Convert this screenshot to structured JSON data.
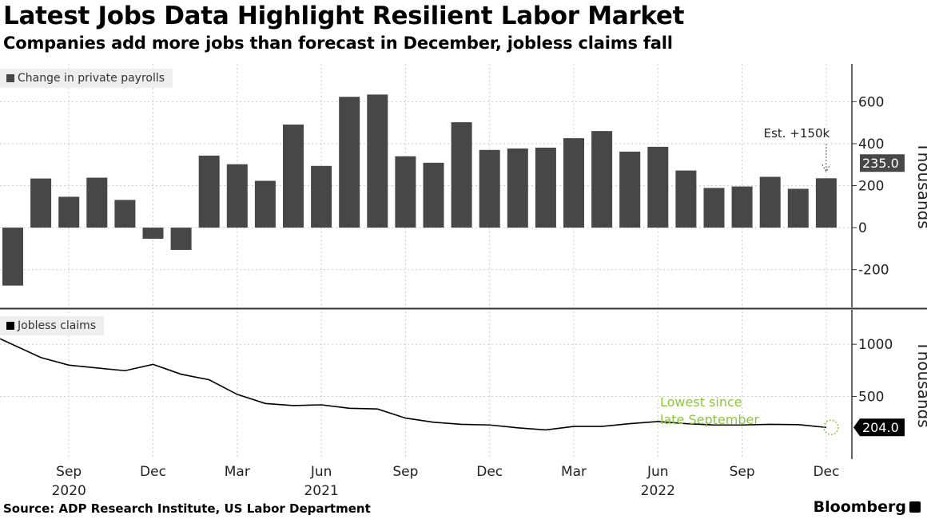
{
  "header": {
    "title": "Latest Jobs Data Highlight Resilient Labor Market",
    "subtitle": "Companies add more jobs than forecast in December, jobless claims fall"
  },
  "footer": {
    "source": "Source: ADP Research Institute, US Labor Department",
    "logo": "Bloomberg"
  },
  "colors": {
    "bar": "#474747",
    "line": "#000000",
    "annotation_green": "#8cc63f",
    "callout_top": "#474747",
    "callout_bottom": "#000000"
  },
  "chart_data": [
    {
      "type": "bar",
      "legend": "Change in private payrolls",
      "ylabel": "Thousands",
      "ylim": [
        -380,
        780
      ],
      "yticks": [
        -200,
        0,
        200,
        400,
        600
      ],
      "ytick_labels": [
        "-200",
        "0",
        "200",
        "400",
        "600"
      ],
      "grid": true,
      "legend_position": "top-left",
      "categories": [
        "Jul 2020",
        "Aug 2020",
        "Sep 2020",
        "Oct 2020",
        "Nov 2020",
        "Dec 2020",
        "Jan 2021",
        "Feb 2021",
        "Mar 2021",
        "Apr 2021",
        "May 2021",
        "Jun 2021",
        "Jul 2021",
        "Aug 2021",
        "Sep 2021",
        "Oct 2021",
        "Nov 2021",
        "Dec 2021",
        "Jan 2022",
        "Feb 2022",
        "Mar 2022",
        "Apr 2022",
        "May 2022",
        "Jun 2022",
        "Jul 2022",
        "Aug 2022",
        "Sep 2022",
        "Oct 2022",
        "Nov 2022",
        "Dec 2022"
      ],
      "values": [
        -276,
        234,
        147,
        238,
        132,
        -53,
        -106,
        343,
        302,
        223,
        491,
        294,
        623,
        634,
        340,
        309,
        502,
        370,
        377,
        381,
        426,
        460,
        362,
        385,
        272,
        189,
        196,
        242,
        185,
        235
      ],
      "last_value_label": "235.0",
      "annotation": "Est. +150k"
    },
    {
      "type": "line",
      "legend": "Jobless claims",
      "ylabel": "Thousands",
      "ylim": [
        -100,
        1330
      ],
      "yticks": [
        500,
        1000
      ],
      "ytick_labels": [
        "500",
        "1000"
      ],
      "grid": true,
      "legend_position": "top-left",
      "categories": [
        "Jul 2020",
        "Aug 2020",
        "Sep 2020",
        "Oct 2020",
        "Nov 2020",
        "Dec 2020",
        "Jan 2021",
        "Feb 2021",
        "Mar 2021",
        "Apr 2021",
        "May 2021",
        "Jun 2021",
        "Jul 2021",
        "Aug 2021",
        "Sep 2021",
        "Oct 2021",
        "Nov 2021",
        "Dec 2021",
        "Jan 2022",
        "Feb 2022",
        "Mar 2022",
        "Apr 2022",
        "May 2022",
        "Jun 2022",
        "Jul 2022",
        "Aug 2022",
        "Sep 2022",
        "Oct 2022",
        "Nov 2022",
        "Dec 2022"
      ],
      "values": [
        1053,
        873,
        800,
        773,
        747,
        807,
        713,
        660,
        520,
        433,
        413,
        420,
        387,
        380,
        293,
        253,
        233,
        227,
        200,
        180,
        213,
        213,
        240,
        260,
        240,
        227,
        227,
        233,
        230,
        204
      ],
      "last_value_label": "204.0",
      "annotation": [
        "Lowest since",
        "late September"
      ]
    }
  ],
  "xaxis": {
    "ticks": [
      {
        "month": "Sep",
        "year": "2020",
        "index": 2
      },
      {
        "month": "Dec",
        "year": "",
        "index": 5
      },
      {
        "month": "Mar",
        "year": "",
        "index": 8
      },
      {
        "month": "Jun",
        "year": "2021",
        "index": 11
      },
      {
        "month": "Sep",
        "year": "",
        "index": 14
      },
      {
        "month": "Dec",
        "year": "",
        "index": 17
      },
      {
        "month": "Mar",
        "year": "",
        "index": 20
      },
      {
        "month": "Jun",
        "year": "2022",
        "index": 23
      },
      {
        "month": "Sep",
        "year": "",
        "index": 26
      },
      {
        "month": "Dec",
        "year": "",
        "index": 29
      }
    ]
  }
}
